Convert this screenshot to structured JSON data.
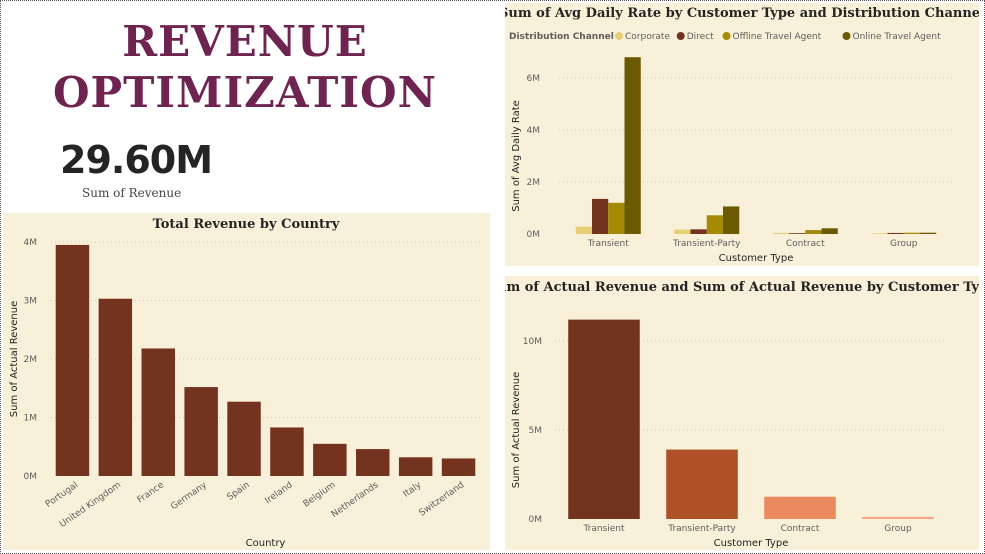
{
  "page": {
    "title_line1": "REVENUE",
    "title_line2": "OPTIMIZATION",
    "kpi_value": "29.60M",
    "kpi_label": "Sum of Revenue"
  },
  "chart_data": [
    {
      "id": "country",
      "type": "bar",
      "title": "Total Revenue by Country",
      "xlabel": "Country",
      "ylabel": "Sum of Actual Revenue",
      "categories": [
        "Portugal",
        "United Kingdom",
        "France",
        "Germany",
        "Spain",
        "Ireland",
        "Belgium",
        "Netherlands",
        "Italy",
        "Switzerland"
      ],
      "values": [
        3950000,
        3030000,
        2180000,
        1520000,
        1270000,
        830000,
        550000,
        460000,
        320000,
        300000
      ],
      "yticks": [
        "0M",
        "1M",
        "2M",
        "3M",
        "4M"
      ],
      "ylim": [
        0,
        4000000
      ],
      "colors": [
        "#73331f"
      ],
      "grid": true
    },
    {
      "id": "adr",
      "type": "bar",
      "title": "Sum of Avg Daily Rate by Customer Type and Distribution Channel",
      "xlabel": "Customer Type",
      "ylabel": "Sum of Avg Daily Rate",
      "legend_title": "Distribution Channel",
      "legend_position": "top-left",
      "categories": [
        "Transient",
        "Transient-Party",
        "Contract",
        "Group"
      ],
      "series": [
        {
          "name": "Corporate",
          "values": [
            280000,
            170000,
            40000,
            30000
          ]
        },
        {
          "name": "Direct",
          "values": [
            1350000,
            180000,
            30000,
            40000
          ]
        },
        {
          "name": "Offline Travel Agent",
          "values": [
            1200000,
            720000,
            150000,
            50000
          ]
        },
        {
          "name": "Online Travel Agent",
          "values": [
            6800000,
            1060000,
            220000,
            50000
          ]
        }
      ],
      "yticks": [
        "0M",
        "2M",
        "4M",
        "6M"
      ],
      "ylim": [
        0,
        6000000
      ],
      "colors": [
        "#e8cf75",
        "#73331f",
        "#a58a05",
        "#6b5a00"
      ],
      "grid": true
    },
    {
      "id": "custtype",
      "type": "bar",
      "title": "Sum of Actual Revenue and Sum of Actual Revenue by Customer Type",
      "xlabel": "Customer Type",
      "ylabel": "Sum of Actual Revenue",
      "categories": [
        "Transient",
        "Transient-Party",
        "Contract",
        "Group"
      ],
      "values": [
        11200000,
        3900000,
        1250000,
        120000
      ],
      "yticks": [
        "0M",
        "5M",
        "10M"
      ],
      "ylim": [
        0,
        10000000
      ],
      "colors": [
        "#73331f",
        "#ae5028",
        "#ea8a5e",
        "#f2a88a"
      ],
      "grid": true
    }
  ]
}
